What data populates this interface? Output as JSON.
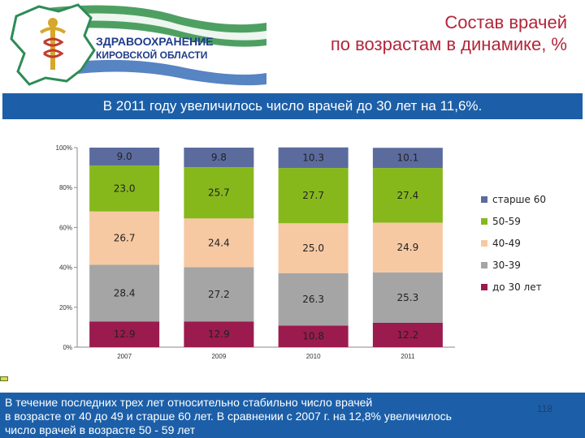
{
  "header": {
    "logo_text_line1": "ЗДРАВООХРАНЕНИЕ",
    "logo_text_line2": "КИРОВСКОЙ ОБЛАСТИ",
    "title_line1": "Состав врачей",
    "title_line2": "по возрастам в динамике, %"
  },
  "banner": {
    "text": "В 2011 году увеличилось  число врачей до 30 лет на 11,6%."
  },
  "chart_data": {
    "type": "bar",
    "stacked": true,
    "percent_axis": true,
    "categories": [
      "2007",
      "2009",
      "2010",
      "2011"
    ],
    "y_ticks": [
      "0%",
      "20%",
      "40%",
      "60%",
      "80%",
      "100%"
    ],
    "ylim": [
      0,
      100
    ],
    "legend_position": "right",
    "series": [
      {
        "name": "до 30 лет",
        "color": "#9b1b4e",
        "values": [
          12.9,
          12.9,
          10.8,
          12.2
        ]
      },
      {
        "name": "30-39",
        "color": "#a5a5a5",
        "values": [
          28.4,
          27.2,
          26.3,
          25.3
        ]
      },
      {
        "name": "40-49",
        "color": "#f6c9a3",
        "values": [
          26.7,
          24.4,
          25.0,
          24.9
        ]
      },
      {
        "name": "50-59",
        "color": "#86b81c",
        "values": [
          23.0,
          25.7,
          27.7,
          27.4
        ]
      },
      {
        "name": "старше 60",
        "color": "#5c6b9e",
        "values": [
          9.0,
          9.8,
          10.3,
          10.1
        ]
      }
    ],
    "legend_order": [
      "старше 60",
      "50-59",
      "40-49",
      "30-39",
      "до 30 лет"
    ]
  },
  "footer": {
    "line1": "В течение последних трех лет относительно стабильно число врачей",
    "line2": "в возрасте от 40 до 49 и старше 60 лет. В сравнении с 2007 г. на 12,8% увеличилось",
    "line3": "число врачей в возрасте 50 - 59 лет",
    "page_number": "118"
  }
}
